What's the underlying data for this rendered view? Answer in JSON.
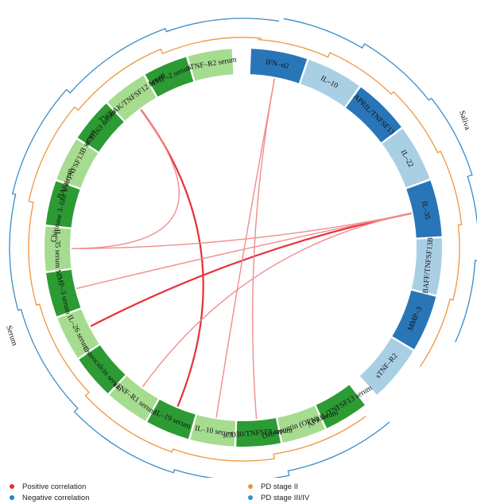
{
  "colors": {
    "saliva_dark": "#2876b8",
    "saliva_light": "#a9cfe5",
    "serum_dark": "#2c9b33",
    "serum_light": "#a6dc8f",
    "positive": "#e8303a",
    "negative": "#2b7fc2",
    "pd_stage_2": "#f0953c",
    "pd_stage_3_4": "#3a8dc9",
    "link_light": "#f08d8d"
  },
  "groups": {
    "saliva": "Saliva",
    "serum": "Serum"
  },
  "segments": {
    "saliva": [
      {
        "label": "IFN–α2",
        "shade": "dark"
      },
      {
        "label": "IL–10",
        "shade": "light"
      },
      {
        "label": "APRIL/TNFSF13",
        "shade": "dark"
      },
      {
        "label": "IL–22",
        "shade": "light"
      },
      {
        "label": "IL–35",
        "shade": "dark"
      },
      {
        "label": "BAFF/TNFSF13B",
        "shade": "light"
      },
      {
        "label": "MMP–3",
        "shade": "dark"
      },
      {
        "label": "sTNF–R2",
        "shade": "light"
      }
    ],
    "serum": [
      {
        "label": "APRIL/TNFSF13 serum",
        "shade": "dark"
      },
      {
        "label": "Osteopontin (OPN) serum",
        "shade": "light"
      },
      {
        "label": "sCD30/TNFSF8 serum",
        "shade": "dark"
      },
      {
        "label": "IL–10 serum",
        "shade": "light"
      },
      {
        "label": "IL–19 serum",
        "shade": "dark"
      },
      {
        "label": "sTNF–R1 serum",
        "shade": "light"
      },
      {
        "label": "Osteocalcin serum",
        "shade": "dark"
      },
      {
        "label": "IL–26 serum",
        "shade": "light"
      },
      {
        "label": "MMP–3 serum",
        "shade": "dark"
      },
      {
        "label": "IL–35 serum",
        "shade": "light"
      },
      {
        "label": "Chitinase 3–like 1 serum",
        "shade": "dark"
      },
      {
        "label": "BAFF/TNFSF13B serum",
        "shade": "light"
      },
      {
        "label": "sCD163 serum",
        "shade": "dark"
      },
      {
        "label": "TWEAK/TNFSF12 serum",
        "shade": "light"
      },
      {
        "label": "MMP–2 serum",
        "shade": "dark"
      },
      {
        "label": "sTNF–R2 serum",
        "shade": "light"
      }
    ]
  },
  "links": [
    {
      "from": "TWEAK/TNFSF12 serum",
      "to": "IL–19 serum",
      "type": "positive",
      "strength": "strong"
    },
    {
      "from": "IL–35",
      "to": "IL–26 serum",
      "type": "positive",
      "strength": "strong"
    },
    {
      "from": "IL–35",
      "to": "IL–35 serum",
      "type": "positive",
      "strength": "light"
    },
    {
      "from": "IFN–α2",
      "to": "IL–10 serum",
      "type": "positive",
      "strength": "light"
    },
    {
      "from": "IFN–α2",
      "to": "sCD30/TNFSF8 serum",
      "type": "positive",
      "strength": "light"
    },
    {
      "from": "IL–35",
      "to": "MMP–3 serum",
      "type": "positive",
      "strength": "light"
    },
    {
      "from": "IL–35",
      "to": "sTNF–R1 serum",
      "type": "positive",
      "strength": "light"
    },
    {
      "from": "TWEAK/TNFSF12 serum",
      "to": "IL–35 serum",
      "type": "positive",
      "strength": "light"
    }
  ],
  "legend": {
    "positive": "Positive correlation",
    "negative": "Negative correlation",
    "pd_stage_2": "PD stage II",
    "pd_stage_3_4": "PD stage III/IV"
  }
}
